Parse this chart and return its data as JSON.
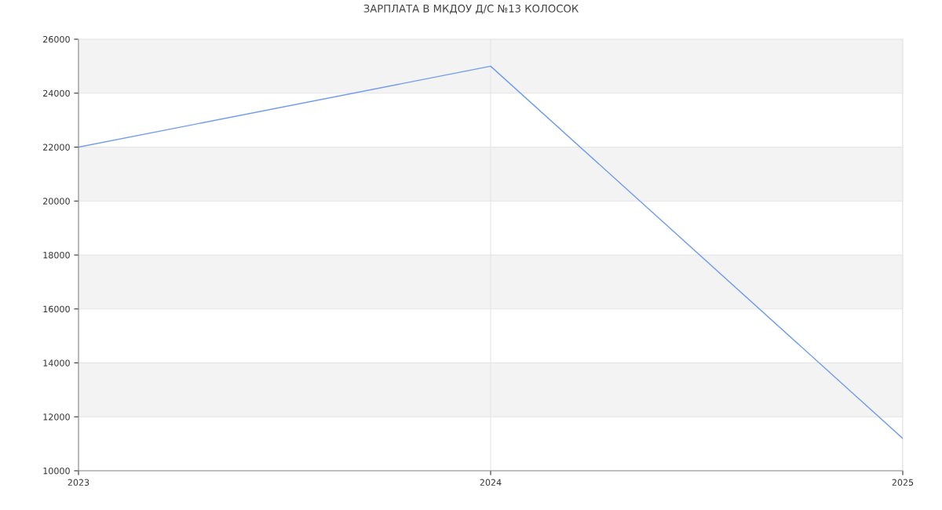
{
  "chart_data": {
    "type": "line",
    "title": "ЗАРПЛАТА В МКДОУ Д/С №13 КОЛОСОК",
    "x": [
      2023,
      2024,
      2025
    ],
    "series": [
      {
        "color": "#6f9cf0",
        "values": [
          22000,
          25000,
          11200
        ]
      }
    ],
    "xlim": [
      2023,
      2025
    ],
    "xticks": [
      2023,
      2024,
      2025
    ],
    "ylim": [
      10000,
      26000
    ],
    "yticks": [
      10000,
      12000,
      14000,
      16000,
      18000,
      20000,
      22000,
      24000,
      26000
    ],
    "bands": [
      {
        "axis": "y",
        "from": 12000,
        "to": 14000,
        "color": "#f3f3f3"
      },
      {
        "axis": "y",
        "from": 16000,
        "to": 18000,
        "color": "#f3f3f3"
      },
      {
        "axis": "y",
        "from": 20000,
        "to": 22000,
        "color": "#f3f3f3"
      },
      {
        "axis": "y",
        "from": 24000,
        "to": 26000,
        "color": "#f3f3f3"
      }
    ],
    "grid": true,
    "marker": "none",
    "line_style": "solid",
    "legend": false
  }
}
